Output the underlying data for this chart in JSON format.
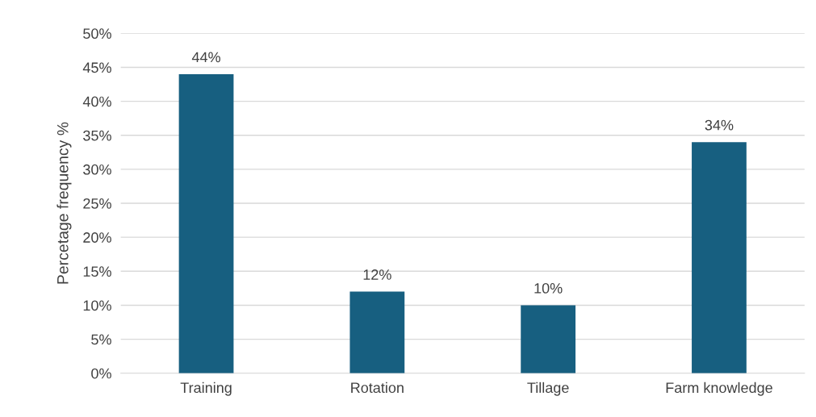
{
  "chart_data": {
    "type": "bar",
    "ylabel": "Percetage frequency %",
    "categories": [
      "Training",
      "Rotation",
      "Tillage",
      "Farm knowledge"
    ],
    "values": [
      44,
      12,
      10,
      34
    ],
    "value_labels": [
      "44%",
      "12%",
      "10%",
      "34%"
    ],
    "color": "#175f80",
    "ylim": [
      0,
      50
    ],
    "yticks": [
      {
        "value": 0,
        "label": "0%"
      },
      {
        "value": 5,
        "label": "5%"
      },
      {
        "value": 10,
        "label": "10%"
      },
      {
        "value": 15,
        "label": "15%"
      },
      {
        "value": 20,
        "label": "20%"
      },
      {
        "value": 25,
        "label": "25%"
      },
      {
        "value": 30,
        "label": "30%"
      },
      {
        "value": 35,
        "label": "35%"
      },
      {
        "value": 40,
        "label": "40%"
      },
      {
        "value": 45,
        "label": "45%"
      },
      {
        "value": 50,
        "label": "50%"
      }
    ],
    "grid": "y"
  }
}
